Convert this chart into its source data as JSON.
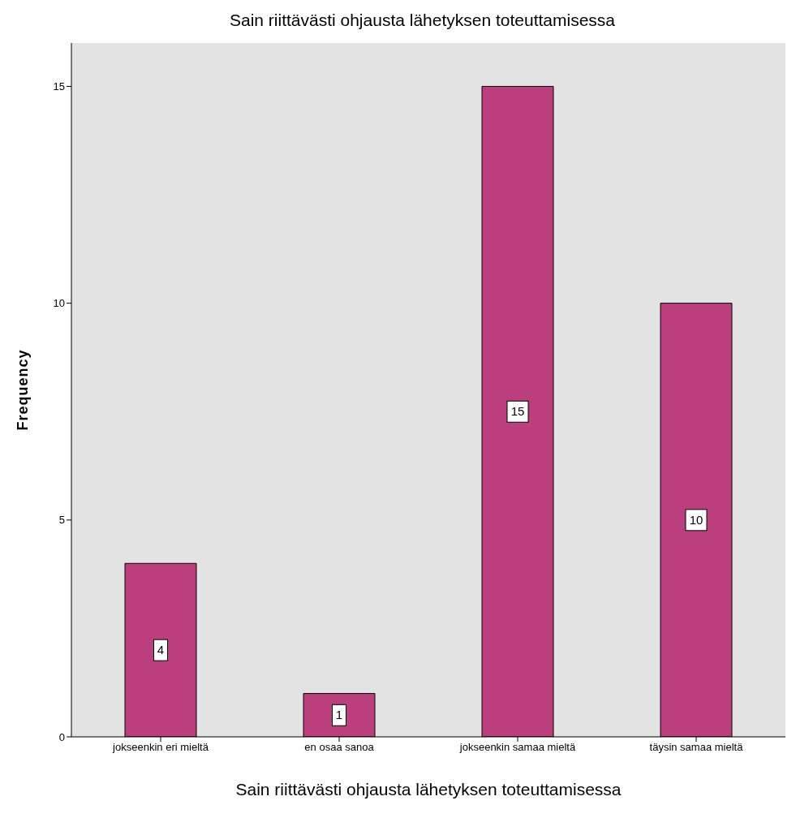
{
  "chart_data": {
    "type": "bar",
    "title": "Sain riittävästi ohjausta lähetyksen toteuttamisessa",
    "xlabel": "Sain riittävästi ohjausta lähetyksen toteuttamisessa",
    "ylabel": "Frequency",
    "categories": [
      "jokseenkin eri mieltä",
      "en osaa sanoa",
      "jokseenkin samaa mieltä",
      "täysin samaa mieltä"
    ],
    "values": [
      4,
      1,
      15,
      10
    ],
    "color": "#bb3f7d",
    "ylim": [
      0,
      16
    ],
    "yticks": [
      0,
      5,
      10,
      15
    ],
    "data_labels": true
  }
}
